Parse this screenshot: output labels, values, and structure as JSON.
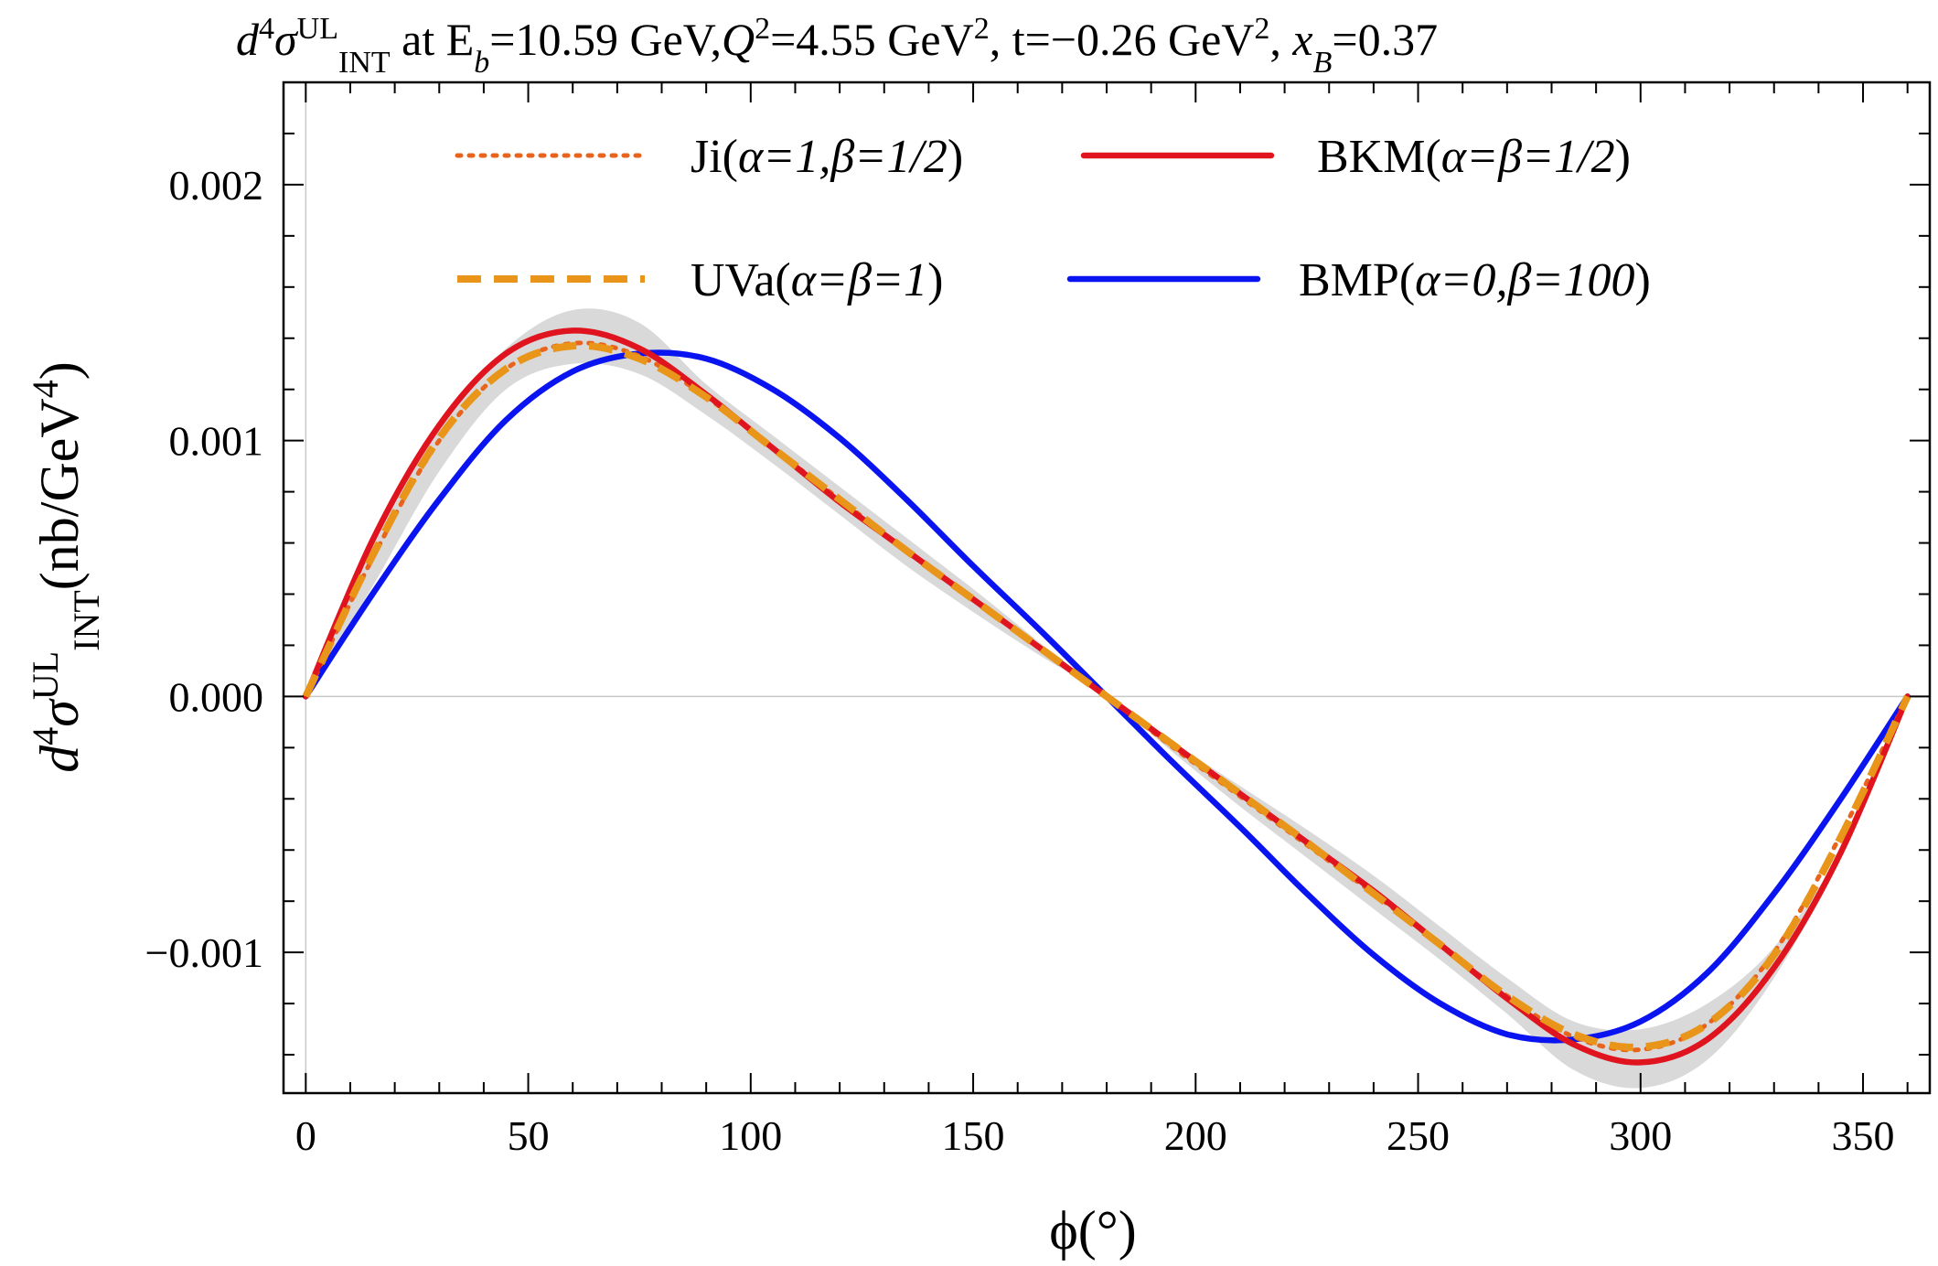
{
  "chart_data": {
    "type": "line",
    "title": {
      "base": "d",
      "sup1": "4",
      "sym": "σ",
      "sup2": "UL",
      "sub": "INT",
      "rest": " at E",
      "eb_sub": "b",
      "eb_val": "=10.59 GeV,",
      "q": "Q",
      "q_sup": "2",
      "q_val": "=4.55 GeV",
      "q_unit_sup": "2",
      "t_part": ", t=−0.26 GeV",
      "t_sup": "2",
      "xb_sep": ", ",
      "x": "x",
      "x_sub": "B",
      "x_val": "=0.37"
    },
    "xlabel": "ϕ(°)",
    "ylabel": {
      "d": "d",
      "sup1": "4",
      "sym": "σ",
      "sup2": "UL",
      "sub": "INT",
      "unit": "(nb/GeV",
      "unit_sup": "4",
      "close": ")"
    },
    "xlim": [
      -5,
      365
    ],
    "ylim": [
      -0.00155,
      0.0024
    ],
    "xticks": [
      "0",
      "50",
      "100",
      "150",
      "200",
      "250",
      "300",
      "350"
    ],
    "yticks": [
      "−0.001",
      "0.000",
      "0.001",
      "0.002"
    ],
    "x": [
      0,
      15,
      30,
      45,
      60,
      75,
      90,
      105,
      120,
      135,
      150,
      165,
      180,
      195,
      210,
      225,
      240,
      255,
      270,
      285,
      300,
      315,
      330,
      345,
      360
    ],
    "series": [
      {
        "name": "band",
        "color": "#d9d9d9",
        "upper": [
          0.0,
          0.00058,
          0.00105,
          0.00136,
          0.00151,
          0.00146,
          0.00122,
          0.00102,
          0.00082,
          0.00062,
          0.00042,
          0.00021,
          0.0,
          -0.00018,
          -0.00035,
          -0.00052,
          -0.0007,
          -0.0009,
          -0.0011,
          -0.00127,
          -0.0013,
          -0.0012,
          -0.00098,
          -0.0006,
          0.0
        ],
        "lower": [
          0.0,
          0.00043,
          0.00088,
          0.0012,
          0.0013,
          0.00126,
          0.0011,
          0.00091,
          0.00071,
          0.00051,
          0.00033,
          0.00016,
          0.0,
          -0.00022,
          -0.00043,
          -0.00063,
          -0.00083,
          -0.00103,
          -0.00124,
          -0.00146,
          -0.00153,
          -0.00142,
          -0.0011,
          -0.00062,
          0.0
        ]
      },
      {
        "name": "Ji",
        "label": "Ji(",
        "greek": "α=1,β=1/2",
        "close": ")",
        "color": "#e8641c",
        "style": "dotted",
        "values": [
          0.0,
          0.00054,
          0.001,
          0.00128,
          0.00138,
          0.00133,
          0.00117,
          0.00097,
          0.00077,
          0.00057,
          0.00038,
          0.00019,
          0.0,
          -0.0002,
          -0.00039,
          -0.00058,
          -0.00077,
          -0.00097,
          -0.00117,
          -0.00133,
          -0.00138,
          -0.00128,
          -0.001,
          -0.00054,
          0.0
        ]
      },
      {
        "name": "BKM",
        "label": "BKM(",
        "greek": "α=β=1/2",
        "close": ")",
        "color": "#e0141e",
        "style": "solid",
        "values": [
          0.0,
          0.00061,
          0.00106,
          0.00134,
          0.00143,
          0.00136,
          0.00118,
          0.00097,
          0.00076,
          0.00057,
          0.00038,
          0.00019,
          0.0,
          -0.00019,
          -0.00038,
          -0.00057,
          -0.00076,
          -0.00097,
          -0.00118,
          -0.00136,
          -0.00143,
          -0.00134,
          -0.00106,
          -0.00061,
          0.0
        ]
      },
      {
        "name": "UVa",
        "label": "UVa(",
        "greek": "α=β=1",
        "close": ")",
        "color": "#e8951a",
        "style": "dashed",
        "values": [
          0.0,
          0.00055,
          0.00101,
          0.00128,
          0.00137,
          0.00132,
          0.00117,
          0.00097,
          0.00077,
          0.00057,
          0.00038,
          0.00019,
          0.0,
          -0.00019,
          -0.00038,
          -0.00057,
          -0.00077,
          -0.00097,
          -0.00117,
          -0.00132,
          -0.00137,
          -0.00128,
          -0.00101,
          -0.00055,
          0.0
        ]
      },
      {
        "name": "BMP",
        "label": "BMP(",
        "greek": "α=0,β=100",
        "close": ")",
        "color": "#0a14f0",
        "style": "solid",
        "values": [
          0.0,
          0.0004,
          0.00077,
          0.00108,
          0.00127,
          0.00134,
          0.00132,
          0.0012,
          0.00101,
          0.00077,
          0.00051,
          0.00026,
          0.0,
          -0.00026,
          -0.00051,
          -0.00077,
          -0.00101,
          -0.0012,
          -0.00132,
          -0.00134,
          -0.00127,
          -0.00108,
          -0.00077,
          -0.0004,
          0.0
        ]
      }
    ]
  }
}
